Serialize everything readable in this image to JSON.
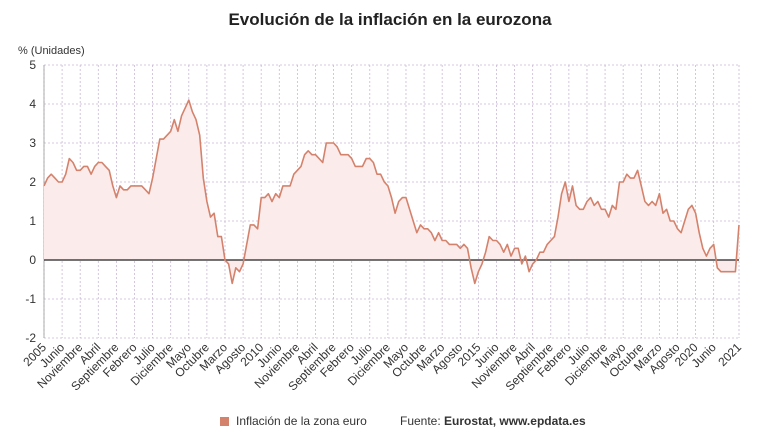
{
  "chart_data": {
    "type": "area",
    "title": "Evolución de la inflación en la eurozona",
    "y_unit_label": "% (Unidades)",
    "ylim": [
      -2,
      5
    ],
    "y_ticks": [
      5,
      4,
      3,
      2,
      1,
      0,
      -1,
      -2
    ],
    "grid": true,
    "legend_position": "bottom",
    "x_start": "2005-01",
    "x_end": "2021-01",
    "x_tick_labels": [
      {
        "date": "2005-01",
        "label": "2005"
      },
      {
        "date": "2005-06",
        "label": "Junio"
      },
      {
        "date": "2005-11",
        "label": "Noviembre"
      },
      {
        "date": "2006-04",
        "label": "Abril"
      },
      {
        "date": "2006-09",
        "label": "Septiembre"
      },
      {
        "date": "2007-02",
        "label": "Febrero"
      },
      {
        "date": "2007-07",
        "label": "Julio"
      },
      {
        "date": "2007-12",
        "label": "Diciembre"
      },
      {
        "date": "2008-05",
        "label": "Mayo"
      },
      {
        "date": "2008-10",
        "label": "Octubre"
      },
      {
        "date": "2009-03",
        "label": "Marzo"
      },
      {
        "date": "2009-08",
        "label": "Agosto"
      },
      {
        "date": "2010-01",
        "label": "2010"
      },
      {
        "date": "2010-06",
        "label": "Junio"
      },
      {
        "date": "2010-11",
        "label": "Noviembre"
      },
      {
        "date": "2011-04",
        "label": "Abril"
      },
      {
        "date": "2011-09",
        "label": "Septiembre"
      },
      {
        "date": "2012-02",
        "label": "Febrero"
      },
      {
        "date": "2012-07",
        "label": "Julio"
      },
      {
        "date": "2012-12",
        "label": "Diciembre"
      },
      {
        "date": "2013-05",
        "label": "Mayo"
      },
      {
        "date": "2013-10",
        "label": "Octubre"
      },
      {
        "date": "2014-03",
        "label": "Marzo"
      },
      {
        "date": "2014-08",
        "label": "Agosto"
      },
      {
        "date": "2015-01",
        "label": "2015"
      },
      {
        "date": "2015-06",
        "label": "Junio"
      },
      {
        "date": "2015-11",
        "label": "Noviembre"
      },
      {
        "date": "2016-04",
        "label": "Abril"
      },
      {
        "date": "2016-09",
        "label": "Septiembre"
      },
      {
        "date": "2017-02",
        "label": "Febrero"
      },
      {
        "date": "2017-07",
        "label": "Julio"
      },
      {
        "date": "2017-12",
        "label": "Diciembre"
      },
      {
        "date": "2018-05",
        "label": "Mayo"
      },
      {
        "date": "2018-10",
        "label": "Octubre"
      },
      {
        "date": "2019-03",
        "label": "Marzo"
      },
      {
        "date": "2019-08",
        "label": "Agosto"
      },
      {
        "date": "2020-01",
        "label": "2020"
      },
      {
        "date": "2020-06",
        "label": "Junio"
      },
      {
        "date": "2021-01",
        "label": "2021"
      }
    ],
    "series": [
      {
        "name": "Inflación de la zona euro",
        "color": "#d4826c",
        "fill_color": "#fbeceb",
        "x": [
          "2005-01",
          "2005-02",
          "2005-03",
          "2005-04",
          "2005-05",
          "2005-06",
          "2005-07",
          "2005-08",
          "2005-09",
          "2005-10",
          "2005-11",
          "2005-12",
          "2006-01",
          "2006-02",
          "2006-03",
          "2006-04",
          "2006-05",
          "2006-06",
          "2006-07",
          "2006-08",
          "2006-09",
          "2006-10",
          "2006-11",
          "2006-12",
          "2007-01",
          "2007-02",
          "2007-03",
          "2007-04",
          "2007-05",
          "2007-06",
          "2007-07",
          "2007-08",
          "2007-09",
          "2007-10",
          "2007-11",
          "2007-12",
          "2008-01",
          "2008-02",
          "2008-03",
          "2008-04",
          "2008-05",
          "2008-06",
          "2008-07",
          "2008-08",
          "2008-09",
          "2008-10",
          "2008-11",
          "2008-12",
          "2009-01",
          "2009-02",
          "2009-03",
          "2009-04",
          "2009-05",
          "2009-06",
          "2009-07",
          "2009-08",
          "2009-09",
          "2009-10",
          "2009-11",
          "2009-12",
          "2010-01",
          "2010-02",
          "2010-03",
          "2010-04",
          "2010-05",
          "2010-06",
          "2010-07",
          "2010-08",
          "2010-09",
          "2010-10",
          "2010-11",
          "2010-12",
          "2011-01",
          "2011-02",
          "2011-03",
          "2011-04",
          "2011-05",
          "2011-06",
          "2011-07",
          "2011-08",
          "2011-09",
          "2011-10",
          "2011-11",
          "2011-12",
          "2012-01",
          "2012-02",
          "2012-03",
          "2012-04",
          "2012-05",
          "2012-06",
          "2012-07",
          "2012-08",
          "2012-09",
          "2012-10",
          "2012-11",
          "2012-12",
          "2013-01",
          "2013-02",
          "2013-03",
          "2013-04",
          "2013-05",
          "2013-06",
          "2013-07",
          "2013-08",
          "2013-09",
          "2013-10",
          "2013-11",
          "2013-12",
          "2014-01",
          "2014-02",
          "2014-03",
          "2014-04",
          "2014-05",
          "2014-06",
          "2014-07",
          "2014-08",
          "2014-09",
          "2014-10",
          "2014-11",
          "2014-12",
          "2015-01",
          "2015-02",
          "2015-03",
          "2015-04",
          "2015-05",
          "2015-06",
          "2015-07",
          "2015-08",
          "2015-09",
          "2015-10",
          "2015-11",
          "2015-12",
          "2016-01",
          "2016-02",
          "2016-03",
          "2016-04",
          "2016-05",
          "2016-06",
          "2016-07",
          "2016-08",
          "2016-09",
          "2016-10",
          "2016-11",
          "2016-12",
          "2017-01",
          "2017-02",
          "2017-03",
          "2017-04",
          "2017-05",
          "2017-06",
          "2017-07",
          "2017-08",
          "2017-09",
          "2017-10",
          "2017-11",
          "2017-12",
          "2018-01",
          "2018-02",
          "2018-03",
          "2018-04",
          "2018-05",
          "2018-06",
          "2018-07",
          "2018-08",
          "2018-09",
          "2018-10",
          "2018-11",
          "2018-12",
          "2019-01",
          "2019-02",
          "2019-03",
          "2019-04",
          "2019-05",
          "2019-06",
          "2019-07",
          "2019-08",
          "2019-09",
          "2019-10",
          "2019-11",
          "2019-12",
          "2020-01",
          "2020-02",
          "2020-03",
          "2020-04",
          "2020-05",
          "2020-06",
          "2020-07",
          "2020-08",
          "2020-09",
          "2020-10",
          "2020-11",
          "2020-12",
          "2021-01"
        ],
        "values": [
          1.9,
          2.1,
          2.2,
          2.1,
          2.0,
          2.0,
          2.2,
          2.6,
          2.5,
          2.3,
          2.3,
          2.4,
          2.4,
          2.2,
          2.4,
          2.5,
          2.5,
          2.4,
          2.3,
          1.9,
          1.6,
          1.9,
          1.8,
          1.8,
          1.9,
          1.9,
          1.9,
          1.9,
          1.8,
          1.7,
          2.1,
          2.6,
          3.1,
          3.1,
          3.2,
          3.3,
          3.6,
          3.3,
          3.7,
          3.9,
          4.1,
          3.8,
          3.6,
          3.2,
          2.1,
          1.5,
          1.1,
          1.2,
          0.6,
          0.6,
          0.0,
          -0.1,
          -0.6,
          -0.2,
          -0.3,
          -0.1,
          0.4,
          0.9,
          0.9,
          0.8,
          1.6,
          1.6,
          1.7,
          1.5,
          1.7,
          1.6,
          1.9,
          1.9,
          1.9,
          2.2,
          2.3,
          2.4,
          2.7,
          2.8,
          2.7,
          2.7,
          2.6,
          2.5,
          3.0,
          3.0,
          3.0,
          2.9,
          2.7,
          2.7,
          2.7,
          2.6,
          2.4,
          2.4,
          2.4,
          2.6,
          2.6,
          2.5,
          2.2,
          2.2,
          2.0,
          1.9,
          1.6,
          1.2,
          1.5,
          1.6,
          1.6,
          1.3,
          1.0,
          0.7,
          0.9,
          0.8,
          0.8,
          0.7,
          0.5,
          0.7,
          0.5,
          0.5,
          0.4,
          0.4,
          0.4,
          0.3,
          0.4,
          0.3,
          -0.2,
          -0.6,
          -0.3,
          -0.1,
          0.2,
          0.6,
          0.5,
          0.5,
          0.4,
          0.2,
          0.4,
          0.1,
          0.3,
          0.3,
          -0.1,
          0.1,
          -0.3,
          -0.1,
          0.0,
          0.2,
          0.2,
          0.4,
          0.5,
          0.6,
          1.1,
          1.7,
          2.0,
          1.5,
          1.9,
          1.4,
          1.3,
          1.3,
          1.5,
          1.6,
          1.4,
          1.5,
          1.3,
          1.3,
          1.1,
          1.4,
          1.3,
          2.0,
          2.0,
          2.2,
          2.1,
          2.1,
          2.3,
          1.9,
          1.5,
          1.4,
          1.5,
          1.4,
          1.7,
          1.2,
          1.3,
          1.0,
          1.0,
          0.8,
          0.7,
          1.0,
          1.3,
          1.4,
          1.2,
          0.7,
          0.3,
          0.1,
          0.3,
          0.4,
          -0.2,
          -0.3,
          -0.3,
          -0.3,
          -0.3,
          -0.3,
          0.9
        ]
      }
    ]
  },
  "legend": {
    "label": "Inflación de la zona euro"
  },
  "footer": {
    "source_prefix": "Fuente: ",
    "source_text": "Eurostat, www.epdata.es"
  }
}
